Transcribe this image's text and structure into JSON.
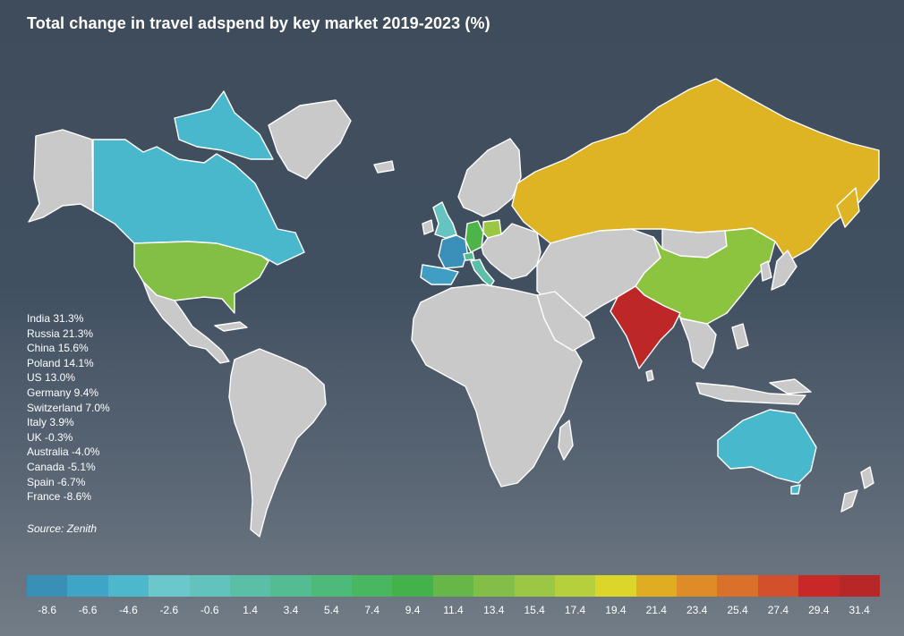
{
  "title": "Total change in travel adspend by key market 2019-2023 (%)",
  "ranking": [
    {
      "text": "India 31.3%",
      "country": "India",
      "value": 31.3
    },
    {
      "text": "Russia 21.3%",
      "country": "Russia",
      "value": 21.3
    },
    {
      "text": "China 15.6%",
      "country": "China",
      "value": 15.6
    },
    {
      "text": "Poland 14.1%",
      "country": "Poland",
      "value": 14.1
    },
    {
      "text": "US 13.0%",
      "country": "US",
      "value": 13.0
    },
    {
      "text": "Germany 9.4%",
      "country": "Germany",
      "value": 9.4
    },
    {
      "text": "Switzerland 7.0%",
      "country": "Switzerland",
      "value": 7.0
    },
    {
      "text": "Italy 3.9%",
      "country": "Italy",
      "value": 3.9
    },
    {
      "text": "UK -0.3%",
      "country": "UK",
      "value": -0.3
    },
    {
      "text": "Australia -4.0%",
      "country": "Australia",
      "value": -4.0
    },
    {
      "text": "Canada -5.1%",
      "country": "Canada",
      "value": -5.1
    },
    {
      "text": "Spain -6.7%",
      "country": "Spain",
      "value": -6.7
    },
    {
      "text": "France -8.6%",
      "country": "France",
      "value": -8.6
    }
  ],
  "source": "Source: Zenith",
  "scale": {
    "labels": [
      "-8.6",
      "-6.6",
      "-4.6",
      "-2.6",
      "-0.6",
      "1.4",
      "3.4",
      "5.4",
      "7.4",
      "9.4",
      "11.4",
      "13.4",
      "15.4",
      "17.4",
      "19.4",
      "21.4",
      "23.4",
      "25.4",
      "27.4",
      "29.4",
      "31.4"
    ],
    "colors": [
      "#3a8fb7",
      "#3fa5c6",
      "#4db8cc",
      "#6ac8cd",
      "#62c3bd",
      "#5bbfa8",
      "#52bc92",
      "#4cba78",
      "#49b760",
      "#43b24b",
      "#66b747",
      "#83bf46",
      "#9bc744",
      "#b6cf3c",
      "#dcd52a",
      "#e0ad22",
      "#dd8c28",
      "#d9712b",
      "#d2512b",
      "#c92828",
      "#b72727"
    ]
  },
  "colors": {
    "land": "#c9c9c9",
    "India": "#bd2727",
    "Russia": "#deb324",
    "China": "#8dc43f",
    "Poland": "#9bc744",
    "US": "#84bf45",
    "Germany": "#4db44a",
    "Switzerland": "#55bb8e",
    "Italy": "#5dbfa9",
    "UK": "#65c3c0",
    "Australia": "#48b9cd",
    "Canada": "#4ab8cc",
    "Spain": "#409dc4",
    "France": "#3a90b9"
  }
}
